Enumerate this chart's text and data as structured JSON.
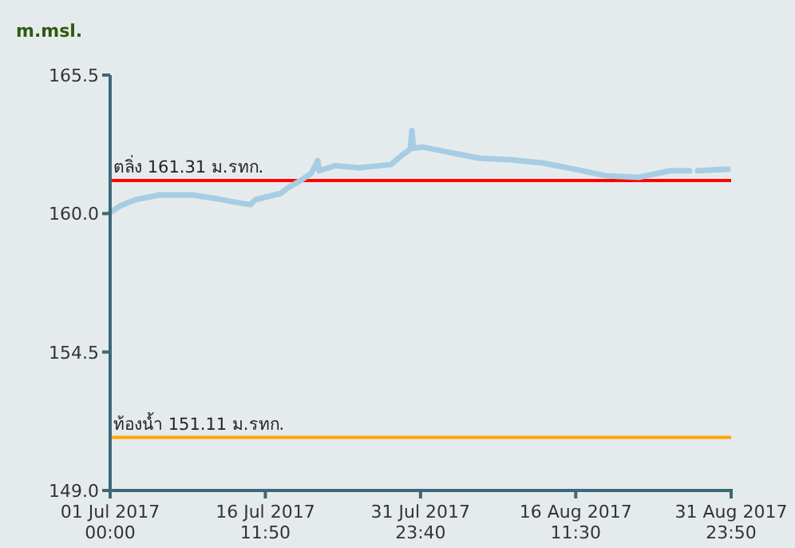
{
  "chart_data": {
    "type": "line",
    "ylabel": "m.msl.",
    "xlim": [
      "2017-07-01T00:00",
      "2017-08-31T23:50"
    ],
    "xticks": [
      {
        "value": "2017-07-01T00:00",
        "label": "01 Jul 2017 00:00"
      },
      {
        "value": "2017-07-16T11:50",
        "label": "16 Jul 2017 11:50"
      },
      {
        "value": "2017-07-31T23:40",
        "label": "31 Jul 2017 23:40"
      },
      {
        "value": "2017-08-16T11:30",
        "label": "16 Aug 2017 11:30"
      },
      {
        "value": "2017-08-31T23:50",
        "label": "31 Aug 2017 23:50"
      }
    ],
    "ylim": [
      149,
      165.5
    ],
    "yticks": [
      {
        "value": 149,
        "label": "149.0"
      },
      {
        "value": 154.5,
        "label": "154.5"
      },
      {
        "value": 160,
        "label": "160.0"
      },
      {
        "value": 165.5,
        "label": "165.5"
      }
    ],
    "grid": false,
    "marker": "none",
    "line_style": "solid",
    "ref_lines": [
      {
        "axis": "y",
        "value": 161.31,
        "label": "ตลิ่ง 161.31 ม.รทก.",
        "color": "#ff0000"
      },
      {
        "axis": "y",
        "value": 151.11,
        "label": "ท้องน้ำ 151.11 ม.รทก.",
        "color": "#ffa500"
      }
    ],
    "series": [
      {
        "color": "#a6cde3",
        "x": [
          "2017-07-01T00:00",
          "2017-07-01T23:00",
          "2017-07-03T13:10",
          "2017-07-05T22:30",
          "2017-07-09T03:00",
          "2017-07-11T12:30",
          "2017-07-13T21:50",
          "2017-07-15T00:30",
          "2017-07-15T12:00",
          "2017-07-17T10:00",
          "2017-07-18T01:10",
          "2017-07-18T16:30",
          "2017-07-19T23:10",
          "2017-07-21T02:00",
          "2017-07-21T17:20",
          "2017-07-21T21:00",
          "2017-07-23T11:20",
          "2017-07-25T20:40",
          "2017-07-29T01:10",
          "2017-07-30T04:00",
          "2017-07-30T23:00",
          "2017-07-31T03:00",
          "2017-07-31T06:40",
          "2017-08-01T05:40",
          "2017-08-03T15:10",
          "2017-08-06T19:30",
          "2017-08-10T00:00",
          "2017-08-13T04:30",
          "2017-08-16T09:10",
          "2017-08-19T13:30",
          "2017-08-22T18:00",
          "2017-08-25T22:30",
          "2017-08-27T12:40",
          "2017-08-27T20:20"
        ],
        "values": [
          160.04,
          160.3,
          160.55,
          160.74,
          160.74,
          160.6,
          160.42,
          160.36,
          160.55,
          160.74,
          160.8,
          161.0,
          161.3,
          161.6,
          162.1,
          161.7,
          161.9,
          161.82,
          161.95,
          162.33,
          162.55,
          163.3,
          162.6,
          162.64,
          162.45,
          162.2,
          162.14,
          162.01,
          161.76,
          161.5,
          161.44,
          161.7,
          161.7,
          161.7
        ]
      },
      {
        "color": "#a6cde3",
        "x": [
          "2017-08-28T15:30",
          "2017-08-31T16:20"
        ],
        "values": [
          161.7,
          161.76
        ]
      }
    ]
  }
}
